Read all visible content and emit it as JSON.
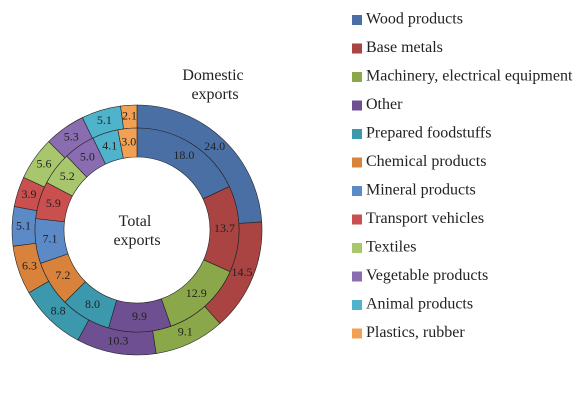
{
  "chart_data": {
    "type": "donut",
    "categories": [
      "Wood products",
      "Base metals",
      "Machinery, electrical equipment",
      "Other",
      "Prepared foodstuffs",
      "Chemical products",
      "Mineral products",
      "Transport vehicles",
      "Textiles",
      "Vegetable products",
      "Animal products",
      "Plastics, rubber"
    ],
    "colors": [
      "#4a6fa5",
      "#a94442",
      "#8aa84a",
      "#6e4f91",
      "#3c98ad",
      "#d9823b",
      "#5b8ac6",
      "#c9504f",
      "#a8c66c",
      "#8a6db0",
      "#4fb3cc",
      "#f2a154"
    ],
    "series": [
      {
        "name": "Domestic exports",
        "values": [
          24.0,
          14.5,
          9.1,
          10.3,
          8.8,
          6.3,
          5.1,
          3.9,
          5.6,
          5.3,
          5.1,
          2.1
        ],
        "value_labels": [
          "24.0",
          "14.5",
          "9.1",
          "10.3",
          "8.8",
          "6.3",
          "5.1",
          "3.9",
          "5.6",
          "5.3",
          "5.1",
          "2.1"
        ]
      },
      {
        "name": "Total exports",
        "values": [
          18.0,
          13.7,
          12.9,
          9.9,
          8.0,
          7.2,
          7.1,
          5.9,
          5.2,
          5.0,
          4.1,
          3.0
        ],
        "value_labels": [
          "18.0",
          "13.7",
          "12.9",
          "9.9",
          "8.0",
          "7.2",
          "7.1",
          "5.9",
          "5.2",
          "5.0",
          "4.1",
          "3.0"
        ]
      }
    ],
    "legend": "right"
  }
}
